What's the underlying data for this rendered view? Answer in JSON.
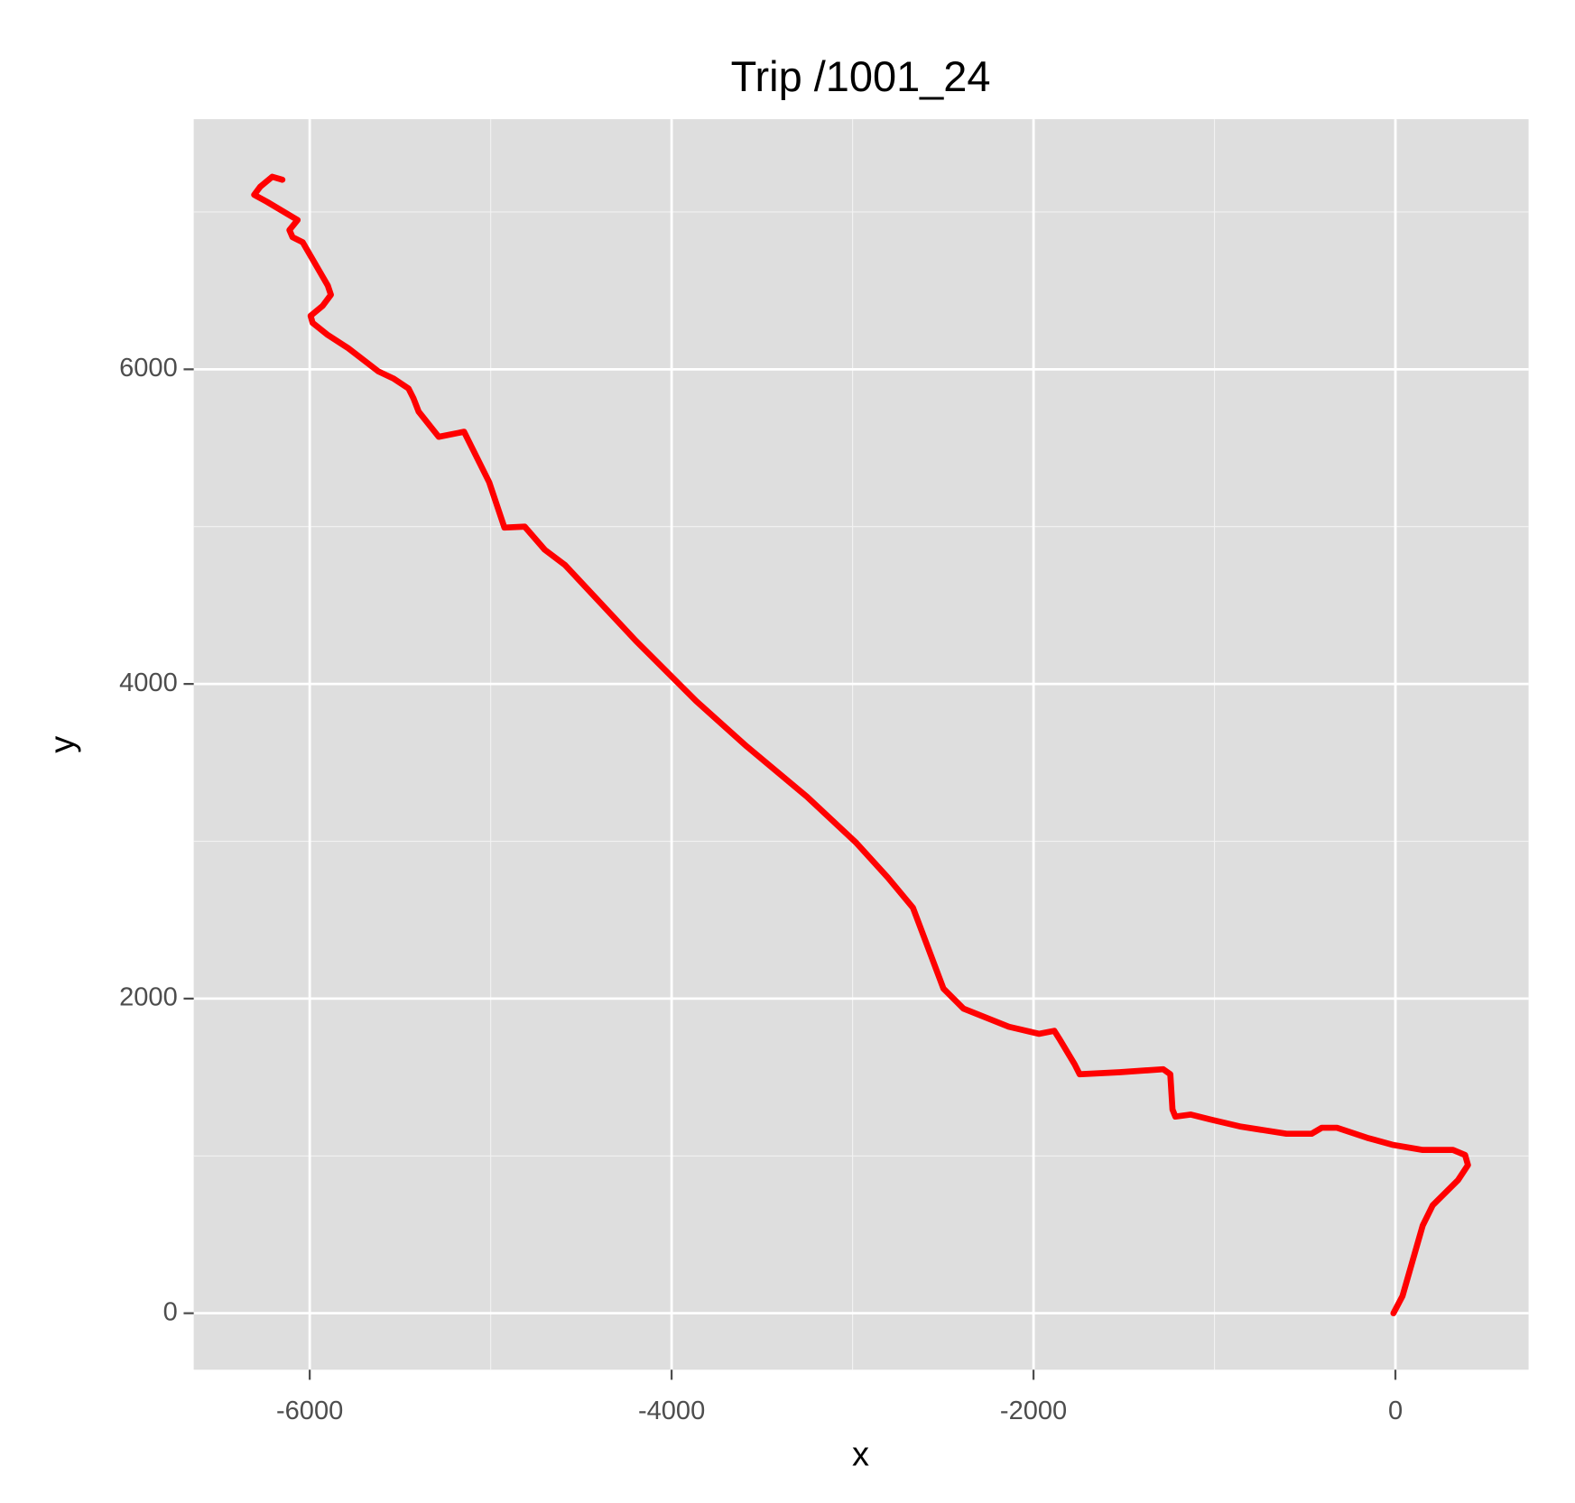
{
  "chart_data": {
    "type": "path",
    "title": "Trip /1001_24",
    "x_label": "x",
    "y_label": "y",
    "color": "#ff0000",
    "grid": true,
    "xlim": [
      -6641,
      736
    ],
    "ylim": [
      -359,
      7590
    ],
    "xticks": [
      -6000,
      -4000,
      -2000,
      0
    ],
    "yticks": [
      0,
      2000,
      4000,
      6000
    ],
    "x_minor_ticks": [
      -5000,
      -3000,
      -1000
    ],
    "y_minor_ticks": [
      1000,
      3000,
      5000,
      7000
    ],
    "x": [
      -11,
      39,
      151,
      206,
      346,
      401,
      385,
      318,
      151,
      -17,
      -156,
      -323,
      -407,
      -463,
      -602,
      -853,
      -1020,
      -1132,
      -1216,
      -1232,
      -1244,
      -1283,
      -1523,
      -1745,
      -1773,
      -1857,
      -1885,
      -1969,
      -2136,
      -2387,
      -2498,
      -2582,
      -2666,
      -2805,
      -2983,
      -3251,
      -3585,
      -3864,
      -4199,
      -4589,
      -4701,
      -4812,
      -4924,
      -5008,
      -5147,
      -5287,
      -5398,
      -5426,
      -5454,
      -5538,
      -5621,
      -5788,
      -5900,
      -5984,
      -5995,
      -5928,
      -5883,
      -5900,
      -6039,
      -6095,
      -6112,
      -6067,
      -6235,
      -6307,
      -6274,
      -6207,
      -6151
    ],
    "y": [
      0,
      109,
      558,
      686,
      846,
      942,
      1006,
      1038,
      1038,
      1071,
      1115,
      1179,
      1179,
      1141,
      1141,
      1186,
      1231,
      1263,
      1250,
      1295,
      1519,
      1551,
      1532,
      1519,
      1583,
      1744,
      1795,
      1776,
      1821,
      1936,
      2064,
      2321,
      2577,
      2769,
      2994,
      3282,
      3603,
      3891,
      4276,
      4756,
      4853,
      5000,
      4994,
      5282,
      5603,
      5571,
      5731,
      5814,
      5878,
      5942,
      5987,
      6135,
      6218,
      6295,
      6340,
      6404,
      6474,
      6532,
      6808,
      6840,
      6885,
      6949,
      7064,
      7109,
      7160,
      7224,
      7205
    ]
  }
}
